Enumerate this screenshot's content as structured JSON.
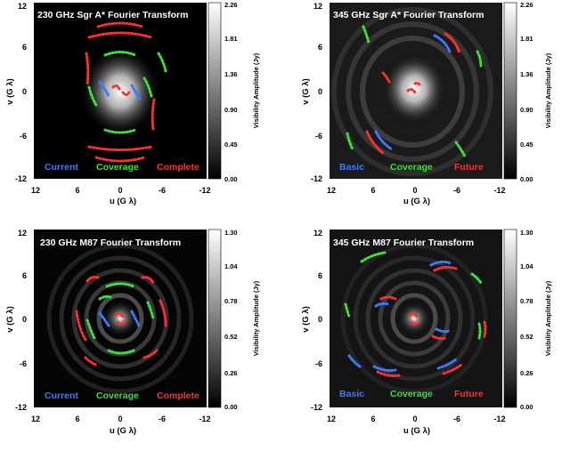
{
  "panels": [
    {
      "title": "230 GHz Sgr A* Fourier Transform",
      "cb_ticks": [
        "2.26",
        "1.81",
        "1.36",
        "0.90",
        "0.45",
        "0.00"
      ],
      "cb_label": "Visibility Amplitude (Jy)",
      "legend": [
        {
          "text": "Current",
          "color": "#3a7bff"
        },
        {
          "text": "Coverage",
          "color": "#3fe03a"
        },
        {
          "text": "Complete",
          "color": "#ff2f2f"
        }
      ],
      "x_ticks": [
        "12",
        "6",
        "0",
        "-6",
        "-12"
      ],
      "y_ticks": [
        "12",
        "6",
        "0",
        "-6",
        "-12"
      ],
      "xlabel": "u (G λ)",
      "ylabel": "v (G λ)"
    },
    {
      "title": "345 GHz Sgr A* Fourier Transform",
      "cb_ticks": [
        "2.26",
        "1.81",
        "1.36",
        "0.90",
        "0.45",
        "0.00"
      ],
      "cb_label": "Visibility Amplitude (Jy)",
      "legend": [
        {
          "text": "Basic",
          "color": "#3a7bff"
        },
        {
          "text": "Coverage",
          "color": "#3fe03a"
        },
        {
          "text": "Future",
          "color": "#ff2f2f"
        }
      ],
      "x_ticks": [
        "12",
        "6",
        "0",
        "-6",
        "-12"
      ],
      "y_ticks": [
        "12",
        "6",
        "0",
        "-6",
        "-12"
      ],
      "xlabel": "u (G λ)",
      "ylabel": "v (G λ)"
    },
    {
      "title": "230 GHz M87 Fourier Transform",
      "cb_ticks": [
        "1.30",
        "1.04",
        "0.78",
        "0.52",
        "0.26",
        "0.00"
      ],
      "cb_label": "Visibility Amplitude (Jy)",
      "legend": [
        {
          "text": "Current",
          "color": "#3a7bff"
        },
        {
          "text": "Coverage",
          "color": "#3fe03a"
        },
        {
          "text": "Complete",
          "color": "#ff2f2f"
        }
      ],
      "x_ticks": [
        "12",
        "6",
        "0",
        "-6",
        "-12"
      ],
      "y_ticks": [
        "12",
        "6",
        "0",
        "-6",
        "-12"
      ],
      "xlabel": "u (G λ)",
      "ylabel": "v (G λ)"
    },
    {
      "title": "345 GHz M87 Fourier Transform",
      "cb_ticks": [
        "1.30",
        "1.04",
        "0.78",
        "0.52",
        "0.26",
        "0.00"
      ],
      "cb_label": "Visibility Amplitude (Jy)",
      "legend": [
        {
          "text": "Basic",
          "color": "#3a7bff"
        },
        {
          "text": "Coverage",
          "color": "#3fe03a"
        },
        {
          "text": "Future",
          "color": "#ff2f2f"
        }
      ],
      "x_ticks": [
        "12",
        "6",
        "0",
        "-6",
        "-12"
      ],
      "y_ticks": [
        "12",
        "6",
        "0",
        "-6",
        "-12"
      ],
      "xlabel": "u (G λ)",
      "ylabel": "v (G λ)"
    }
  ]
}
